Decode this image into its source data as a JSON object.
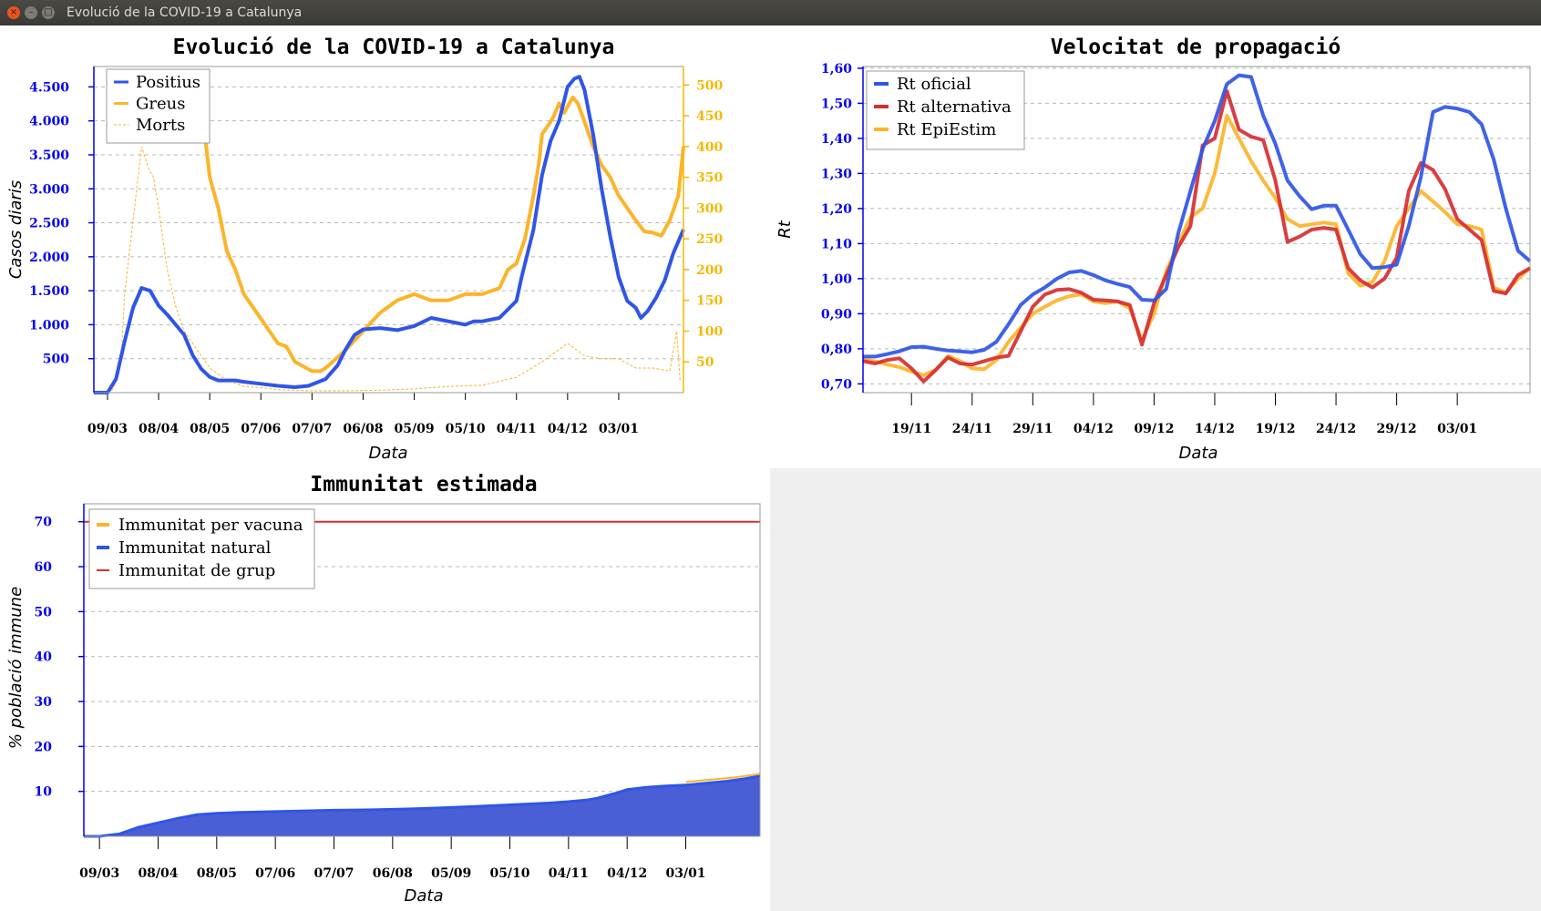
{
  "window": {
    "title": "Evolució de la COVID-19 a Catalunya"
  },
  "colors": {
    "blue": "#2f55e8",
    "orange": "#fcb42a",
    "red": "#d62e32",
    "tickBlue": "#0000ee",
    "tickOrange": "#f5b800"
  },
  "chart_data": [
    {
      "type": "line",
      "title": "Evolució de la COVID-19 a Catalunya",
      "xlabel": "Data",
      "ylabel": "Casos diaris",
      "ylabel_right": "",
      "x_ticks": [
        "09/03",
        "08/04",
        "08/05",
        "07/06",
        "07/07",
        "06/08",
        "05/09",
        "05/10",
        "04/11",
        "04/12",
        "03/01"
      ],
      "y_left_ticks": [
        "500",
        "1.000",
        "1.500",
        "2.000",
        "2.500",
        "3.000",
        "3.500",
        "4.000",
        "4.500"
      ],
      "y_right_ticks": [
        "50",
        "100",
        "150",
        "200",
        "250",
        "300",
        "350",
        "400",
        "450",
        "500"
      ],
      "ylim_left": [
        0,
        4800
      ],
      "ylim_right": [
        0,
        530
      ],
      "legend_position": "top-left",
      "series": [
        {
          "name": "Positius",
          "axis": "left",
          "style": "solid",
          "color": "#2f55e8",
          "x": [
            -8,
            0,
            5,
            10,
            15,
            20,
            25,
            30,
            35,
            40,
            45,
            50,
            55,
            60,
            65,
            70,
            75,
            80,
            90,
            100,
            110,
            118,
            128,
            135,
            140,
            145,
            150,
            160,
            170,
            180,
            190,
            200,
            210,
            215,
            220,
            230,
            240,
            243,
            250,
            255,
            260,
            265,
            270,
            274,
            277,
            280,
            285,
            290,
            295,
            300,
            305,
            310,
            313,
            317,
            322,
            327,
            332,
            338
          ],
          "y": [
            0,
            0,
            200,
            750,
            1250,
            1540,
            1500,
            1280,
            1150,
            1000,
            850,
            550,
            350,
            230,
            180,
            180,
            180,
            160,
            130,
            100,
            80,
            100,
            200,
            400,
            650,
            850,
            930,
            950,
            920,
            980,
            1100,
            1050,
            1000,
            1050,
            1050,
            1100,
            1350,
            1700,
            2400,
            3200,
            3700,
            4000,
            4500,
            4620,
            4650,
            4450,
            3800,
            3000,
            2300,
            1700,
            1350,
            1250,
            1100,
            1200,
            1400,
            1650,
            2050,
            2400
          ]
        },
        {
          "name": "Greus",
          "axis": "right",
          "style": "solid",
          "color": "#fcb42a",
          "x": [
            50,
            55,
            60,
            65,
            70,
            75,
            80,
            90,
            100,
            105,
            110,
            120,
            125,
            128,
            130,
            140,
            150,
            160,
            170,
            180,
            190,
            200,
            210,
            220,
            230,
            235,
            240,
            245,
            250,
            253,
            255,
            260,
            262,
            265,
            268,
            270,
            273,
            276,
            280,
            285,
            290,
            295,
            300,
            305,
            310,
            315,
            320,
            325,
            330,
            335,
            338
          ],
          "y": [
            515,
            470,
            350,
            300,
            230,
            200,
            160,
            120,
            80,
            75,
            50,
            35,
            35,
            40,
            45,
            70,
            100,
            130,
            150,
            160,
            150,
            150,
            160,
            160,
            170,
            200,
            210,
            250,
            320,
            370,
            420,
            440,
            450,
            470,
            455,
            465,
            480,
            470,
            440,
            400,
            370,
            350,
            320,
            300,
            280,
            262,
            260,
            255,
            280,
            320,
            400
          ]
        },
        {
          "name": "Morts",
          "axis": "right",
          "style": "dashed",
          "color": "#fcb42a",
          "x": [
            -8,
            0,
            3,
            5,
            8,
            10,
            15,
            20,
            24,
            27,
            30,
            35,
            40,
            45,
            50,
            55,
            60,
            70,
            80,
            90,
            100,
            110,
            120,
            140,
            160,
            180,
            200,
            220,
            240,
            255,
            260,
            265,
            270,
            280,
            290,
            300,
            310,
            320,
            330,
            334,
            336
          ],
          "y": [
            0,
            0,
            5,
            20,
            50,
            160,
            280,
            400,
            365,
            350,
            300,
            200,
            140,
            100,
            80,
            60,
            40,
            20,
            10,
            8,
            5,
            4,
            3,
            3,
            4,
            6,
            10,
            12,
            25,
            50,
            60,
            70,
            80,
            60,
            55,
            55,
            40,
            40,
            35,
            100,
            20
          ]
        }
      ]
    },
    {
      "type": "line",
      "title": "Velocitat de propagació",
      "xlabel": "Data",
      "ylabel": "Rt",
      "x_ticks": [
        "19/11",
        "24/11",
        "29/11",
        "04/12",
        "09/12",
        "14/12",
        "19/12",
        "24/12",
        "29/12",
        "03/01"
      ],
      "y_ticks": [
        "0,70",
        "0,80",
        "0,90",
        "1,00",
        "1,10",
        "1,20",
        "1,30",
        "1,40",
        "1,50",
        "1,60"
      ],
      "ylim": [
        0.675,
        1.605
      ],
      "legend_position": "top-left",
      "series": [
        {
          "name": "Rt oficial",
          "color": "#2f55e8",
          "x": [
            15,
            16,
            17,
            18,
            19,
            20,
            21,
            22,
            23,
            24,
            25,
            26,
            27,
            28,
            29,
            30,
            31,
            32,
            33,
            34,
            35,
            36,
            37,
            38,
            39,
            40,
            41,
            42,
            43,
            44,
            45,
            46,
            47,
            48,
            49,
            50,
            51,
            52,
            53,
            54,
            55,
            56,
            57,
            58,
            59,
            60,
            61,
            62,
            63,
            64,
            65,
            66,
            67,
            68,
            69,
            70
          ],
          "y": [
            0.778,
            0.778,
            0.785,
            0.793,
            0.805,
            0.806,
            0.8,
            0.795,
            0.793,
            0.79,
            0.797,
            0.82,
            0.87,
            0.925,
            0.955,
            0.975,
            1.0,
            1.018,
            1.022,
            1.01,
            0.995,
            0.985,
            0.976,
            0.94,
            0.938,
            0.97,
            1.13,
            1.25,
            1.37,
            1.45,
            1.555,
            1.58,
            1.575,
            1.465,
            1.385,
            1.28,
            1.235,
            1.198,
            1.208,
            1.208,
            1.14,
            1.07,
            1.03,
            1.033,
            1.04,
            1.15,
            1.29,
            1.475,
            1.49,
            1.485,
            1.475,
            1.44,
            1.34,
            1.2,
            1.08,
            1.05
          ],
          "width": 4
        },
        {
          "name": "Rt alternativa",
          "color": "#d62e32",
          "x": [
            15,
            16,
            17,
            18,
            19,
            20,
            21,
            22,
            23,
            24,
            25,
            26,
            27,
            28,
            29,
            30,
            31,
            32,
            33,
            34,
            35,
            36,
            37,
            38,
            39,
            40,
            41,
            42,
            43,
            44,
            45,
            46,
            47,
            48,
            49,
            50,
            51,
            52,
            53,
            54,
            55,
            56,
            57,
            58,
            59,
            60,
            61,
            62,
            63,
            64,
            65,
            66,
            67,
            68,
            69,
            70
          ],
          "y": [
            0.765,
            0.758,
            0.768,
            0.773,
            0.744,
            0.707,
            0.74,
            0.775,
            0.758,
            0.755,
            0.765,
            0.775,
            0.78,
            0.85,
            0.92,
            0.955,
            0.968,
            0.97,
            0.96,
            0.94,
            0.938,
            0.935,
            0.925,
            0.812,
            0.93,
            1.01,
            1.09,
            1.15,
            1.38,
            1.4,
            1.535,
            1.425,
            1.405,
            1.395,
            1.28,
            1.105,
            1.12,
            1.14,
            1.145,
            1.14,
            1.03,
            0.995,
            0.975,
            1.0,
            1.06,
            1.25,
            1.33,
            1.31,
            1.255,
            1.17,
            1.14,
            1.11,
            0.965,
            0.958,
            1.01,
            1.03
          ],
          "width": 4
        },
        {
          "name": "Rt EpiEstim",
          "color": "#fcb42a",
          "x": [
            15,
            16,
            17,
            18,
            19,
            20,
            21,
            22,
            23,
            24,
            25,
            26,
            27,
            28,
            29,
            30,
            31,
            32,
            33,
            34,
            35,
            36,
            37,
            38,
            39,
            40,
            41,
            42,
            43,
            44,
            45,
            46,
            47,
            48,
            49,
            50,
            51,
            52,
            53,
            54,
            55,
            56,
            57,
            58,
            59,
            60,
            61,
            62,
            63,
            64,
            65,
            66,
            67,
            68,
            69,
            70
          ],
          "y": [
            0.77,
            0.764,
            0.755,
            0.748,
            0.735,
            0.725,
            0.74,
            0.78,
            0.765,
            0.744,
            0.742,
            0.768,
            0.82,
            0.86,
            0.9,
            0.92,
            0.938,
            0.95,
            0.955,
            0.935,
            0.93,
            0.935,
            0.915,
            0.825,
            0.9,
            1.02,
            1.1,
            1.175,
            1.2,
            1.3,
            1.465,
            1.4,
            1.335,
            1.28,
            1.23,
            1.17,
            1.15,
            1.155,
            1.16,
            1.155,
            1.015,
            0.98,
            0.99,
            1.05,
            1.15,
            1.2,
            1.25,
            1.22,
            1.19,
            1.155,
            1.15,
            1.14,
            0.975,
            0.96,
            1.0,
            1.03
          ],
          "width": 4
        }
      ]
    },
    {
      "type": "area",
      "title": "Immunitat estimada",
      "xlabel": "Data",
      "ylabel": "% població immune",
      "x_ticks": [
        "09/03",
        "08/04",
        "08/05",
        "07/06",
        "07/07",
        "06/08",
        "05/09",
        "05/10",
        "04/11",
        "04/12",
        "03/01"
      ],
      "y_ticks": [
        "10",
        "20",
        "30",
        "40",
        "50",
        "60",
        "70"
      ],
      "ylim": [
        0,
        74
      ],
      "legend_position": "top-left",
      "series": [
        {
          "name": "Immunitat per vacuna",
          "color": "#fcb42a",
          "x": [
            300,
            305,
            310,
            315,
            320,
            325,
            330,
            335,
            338
          ],
          "y": [
            12.1,
            12.3,
            12.5,
            12.7,
            12.9,
            13.1,
            13.4,
            13.7,
            13.9
          ]
        },
        {
          "name": "Immunitat natural",
          "color": "#2f55e8",
          "fill": "#4a5fd6",
          "x": [
            -8,
            0,
            10,
            20,
            30,
            40,
            50,
            60,
            70,
            80,
            90,
            100,
            110,
            120,
            140,
            160,
            180,
            200,
            210,
            220,
            230,
            240,
            250,
            255,
            260,
            265,
            270,
            280,
            290,
            300,
            310,
            320,
            330,
            338
          ],
          "y": [
            0,
            0,
            0.5,
            2.0,
            3.0,
            4.0,
            4.8,
            5.1,
            5.3,
            5.4,
            5.5,
            5.6,
            5.7,
            5.8,
            5.9,
            6.1,
            6.4,
            6.8,
            7.0,
            7.2,
            7.4,
            7.7,
            8.1,
            8.5,
            9.1,
            9.7,
            10.4,
            10.9,
            11.2,
            11.4,
            11.8,
            12.2,
            12.8,
            13.4
          ]
        },
        {
          "name": "Immunitat de grup",
          "color": "#d62e32",
          "x": [
            -8,
            338
          ],
          "y": [
            70,
            70
          ]
        }
      ]
    }
  ]
}
